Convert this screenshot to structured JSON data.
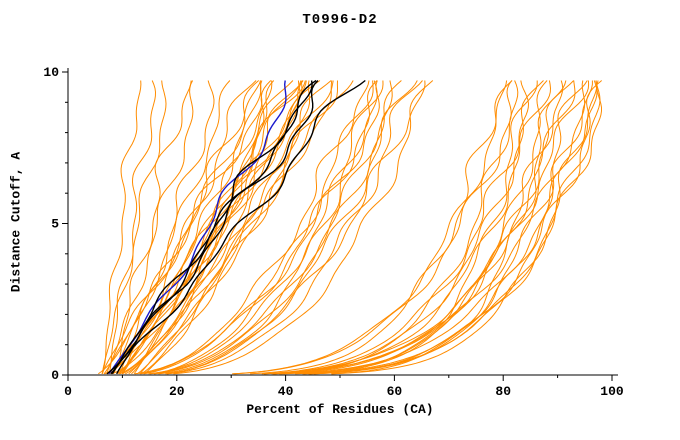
{
  "title": "T0996-D2",
  "chart_data": {
    "type": "line",
    "title": "T0996-D2",
    "xlabel": "Percent of Residues (CA)",
    "ylabel": "Distance Cutoff, A",
    "xlim": [
      0,
      100
    ],
    "ylim": [
      0,
      10
    ],
    "x_major_ticks": [
      0,
      20,
      40,
      60,
      80,
      100
    ],
    "x_minor_step": 10,
    "y_major_ticks": [
      0,
      5,
      10
    ],
    "y_minor_step": 1,
    "grid": false,
    "legend": "none",
    "colors": {
      "model": "#ff8c00",
      "highlight": "#000000",
      "reference": "#1a1acd"
    },
    "curve_format": "[x_at_y0, x_at_y10, shape_exponent_p, wiggle_amplitude, wiggle_phase]; x(y)=x0+(x1-x0)*(y/10)^p plus small wiggle",
    "orange_curves": [
      [
        6,
        13,
        0.9,
        1.0,
        0.5
      ],
      [
        7,
        16,
        0.85,
        1.2,
        1.1
      ],
      [
        6,
        19,
        0.9,
        1.0,
        2.0
      ],
      [
        8,
        22,
        0.95,
        1.5,
        0.3
      ],
      [
        7,
        25,
        0.9,
        1.2,
        2.6
      ],
      [
        9,
        28,
        0.85,
        1.4,
        1.8
      ],
      [
        8,
        31,
        0.9,
        1.0,
        3.1
      ],
      [
        10,
        34,
        0.95,
        1.3,
        4.0
      ],
      [
        5,
        35,
        0.8,
        1.5,
        0.2
      ],
      [
        6,
        37,
        0.9,
        1.2,
        1.4
      ],
      [
        6,
        39,
        1.0,
        1.6,
        2.2
      ],
      [
        7,
        36,
        0.7,
        1.3,
        3.3
      ],
      [
        7,
        41,
        0.85,
        1.1,
        4.1
      ],
      [
        8,
        43,
        0.95,
        1.4,
        5.0
      ],
      [
        8,
        38,
        0.75,
        1.2,
        0.9
      ],
      [
        9,
        45,
        0.9,
        1.5,
        1.7
      ],
      [
        9,
        40,
        0.8,
        1.3,
        2.8
      ],
      [
        10,
        47,
        1.0,
        1.2,
        3.6
      ],
      [
        10,
        42,
        0.7,
        1.4,
        4.4
      ],
      [
        11,
        49,
        0.85,
        1.1,
        5.5
      ],
      [
        11,
        44,
        0.9,
        1.5,
        0.6
      ],
      [
        12,
        51,
        0.8,
        1.2,
        1.9
      ],
      [
        12,
        46,
        0.95,
        1.3,
        2.5
      ],
      [
        13,
        48,
        0.75,
        1.4,
        3.9
      ],
      [
        13,
        52,
        0.9,
        1.1,
        4.7
      ],
      [
        14,
        50,
        0.85,
        1.5,
        5.8
      ],
      [
        8,
        44,
        0.65,
        1.2,
        1.2
      ],
      [
        9,
        47,
        0.7,
        1.3,
        2.1
      ],
      [
        7,
        39,
        0.6,
        1.4,
        3.0
      ],
      [
        6,
        42,
        0.68,
        1.2,
        4.8
      ],
      [
        8,
        55,
        0.45,
        1.5,
        0.4
      ],
      [
        9,
        58,
        0.4,
        1.3,
        1.5
      ],
      [
        10,
        60,
        0.5,
        1.6,
        2.3
      ],
      [
        11,
        62,
        0.42,
        1.2,
        3.4
      ],
      [
        12,
        64,
        0.38,
        1.5,
        4.2
      ],
      [
        10,
        57,
        0.35,
        1.3,
        5.1
      ],
      [
        13,
        66,
        0.45,
        1.4,
        0.8
      ],
      [
        9,
        61,
        0.4,
        1.2,
        1.6
      ],
      [
        11,
        59,
        0.5,
        1.5,
        2.9
      ],
      [
        12,
        67,
        0.36,
        1.3,
        3.7
      ],
      [
        14,
        63,
        0.44,
        1.4,
        4.5
      ],
      [
        13,
        56,
        0.48,
        1.2,
        5.6
      ],
      [
        10,
        80,
        0.2,
        1.5,
        0.3
      ],
      [
        12,
        83,
        0.18,
        1.3,
        1.2
      ],
      [
        14,
        86,
        0.22,
        1.6,
        2.0
      ],
      [
        11,
        89,
        0.16,
        1.2,
        3.2
      ],
      [
        13,
        92,
        0.2,
        1.5,
        4.0
      ],
      [
        15,
        95,
        0.24,
        1.3,
        5.2
      ],
      [
        10,
        97,
        0.15,
        1.4,
        0.7
      ],
      [
        12,
        99,
        0.18,
        1.2,
        1.8
      ],
      [
        14,
        84,
        0.26,
        1.5,
        2.7
      ],
      [
        11,
        87,
        0.2,
        1.3,
        3.8
      ],
      [
        13,
        90,
        0.14,
        1.4,
        4.6
      ],
      [
        15,
        93,
        0.22,
        1.2,
        5.7
      ],
      [
        12,
        96,
        0.17,
        1.5,
        0.5
      ],
      [
        10,
        98,
        0.2,
        1.3,
        1.3
      ],
      [
        14,
        100,
        0.19,
        1.4,
        2.4
      ],
      [
        13,
        82,
        0.25,
        1.2,
        3.5
      ],
      [
        11,
        94,
        0.16,
        1.5,
        4.3
      ],
      [
        15,
        88,
        0.21,
        1.3,
        5.4
      ],
      [
        12,
        91,
        0.18,
        1.4,
        0.9
      ],
      [
        14,
        97,
        0.23,
        1.2,
        2.2
      ],
      [
        16,
        99,
        0.2,
        1.5,
        3.3
      ],
      [
        13,
        85,
        0.15,
        1.3,
        4.9
      ]
    ],
    "black_curves": [
      [
        7,
        46,
        0.95,
        1.8,
        1.0
      ],
      [
        8,
        50,
        1.0,
        2.0,
        2.5
      ],
      [
        7,
        54,
        0.9,
        1.6,
        4.2
      ],
      [
        9,
        48,
        1.05,
        1.5,
        3.0
      ]
    ],
    "blue_curves": [
      [
        7,
        43,
        0.9,
        1.5,
        2.0
      ]
    ]
  }
}
